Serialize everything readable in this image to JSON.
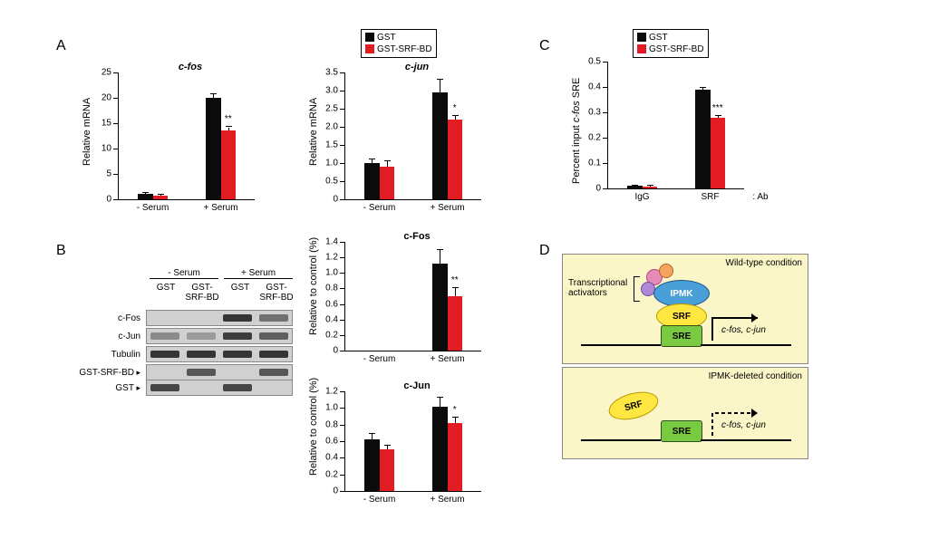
{
  "colors": {
    "gst": "#0b0b0b",
    "srfbd": "#e31b23",
    "bg": "#ffffff"
  },
  "legend": {
    "gst": "GST",
    "srfbd": "GST-SRF-BD"
  },
  "panelA": {
    "letter": "A",
    "cfos": {
      "title": "c-fos",
      "ylabel": "Relative mRNA",
      "ylim": [
        0,
        25
      ],
      "ytick_step": 5,
      "categories": [
        "- Serum",
        "+ Serum"
      ],
      "gst": [
        1.0,
        20.0
      ],
      "srfbd": [
        0.7,
        13.5
      ],
      "err_gst": [
        0.3,
        0.8
      ],
      "err_srfbd": [
        0.2,
        0.7
      ],
      "sig": [
        "",
        "**"
      ]
    },
    "cjun": {
      "title": "c-jun",
      "ylabel": "Relative mRNA",
      "ylim": [
        0,
        3.5
      ],
      "ytick_step": 0.5,
      "categories": [
        "- Serum",
        "+ Serum"
      ],
      "gst": [
        1.0,
        2.95
      ],
      "srfbd": [
        0.9,
        2.2
      ],
      "err_gst": [
        0.1,
        0.35
      ],
      "err_srfbd": [
        0.15,
        0.1
      ],
      "sig": [
        "",
        "*"
      ]
    }
  },
  "panelB": {
    "letter": "B",
    "blot": {
      "group_labels": [
        "- Serum",
        "+ Serum"
      ],
      "lane_labels": [
        "GST",
        "GST-\nSRF-BD",
        "GST",
        "GST-\nSRF-BD"
      ],
      "rows": [
        "c-Fos",
        "c-Jun",
        "Tubulin",
        "GST-SRF-BD",
        "GST"
      ],
      "arrow_rows": [
        "GST-SRF-BD",
        "GST"
      ]
    },
    "cfos_quant": {
      "title": "c-Fos",
      "ylabel": "Relative to control (%)",
      "ylim": [
        0,
        1.4
      ],
      "ytick_step": 0.2,
      "categories": [
        "- Serum",
        "+ Serum"
      ],
      "gst": [
        0.0,
        1.12
      ],
      "srfbd": [
        0.0,
        0.7
      ],
      "err_gst": [
        0,
        0.18
      ],
      "err_srfbd": [
        0,
        0.1
      ],
      "sig": [
        "",
        "**"
      ]
    },
    "cjun_quant": {
      "title": "c-Jun",
      "ylabel": "Relative to control (%)",
      "ylim": [
        0,
        1.2
      ],
      "ytick_step": 0.2,
      "categories": [
        "- Serum",
        "+ Serum"
      ],
      "gst": [
        0.62,
        1.02
      ],
      "srfbd": [
        0.5,
        0.82
      ],
      "err_gst": [
        0.07,
        0.1
      ],
      "err_srfbd": [
        0.05,
        0.06
      ],
      "sig": [
        "",
        "*"
      ]
    }
  },
  "panelC": {
    "letter": "C",
    "chart": {
      "ylabel": "Percent input c-fos SRE",
      "ylim": [
        0,
        0.5
      ],
      "ytick_step": 0.1,
      "categories": [
        "IgG",
        "SRF"
      ],
      "xlab_suffix": ": Ab",
      "gst": [
        0.01,
        0.39
      ],
      "srfbd": [
        0.008,
        0.28
      ],
      "err_gst": [
        0.002,
        0.008
      ],
      "err_srfbd": [
        0.002,
        0.005
      ],
      "sig": [
        "",
        "***"
      ]
    }
  },
  "panelD": {
    "letter": "D",
    "wild_label": "Wild-type condition",
    "deleted_label": "IPMK-deleted condition",
    "activators_label": "Transcriptional\nactivators",
    "sre": "SRE",
    "srf": "SRF",
    "ipmk": "IPMK",
    "genes": "c-fos, c-jun"
  }
}
